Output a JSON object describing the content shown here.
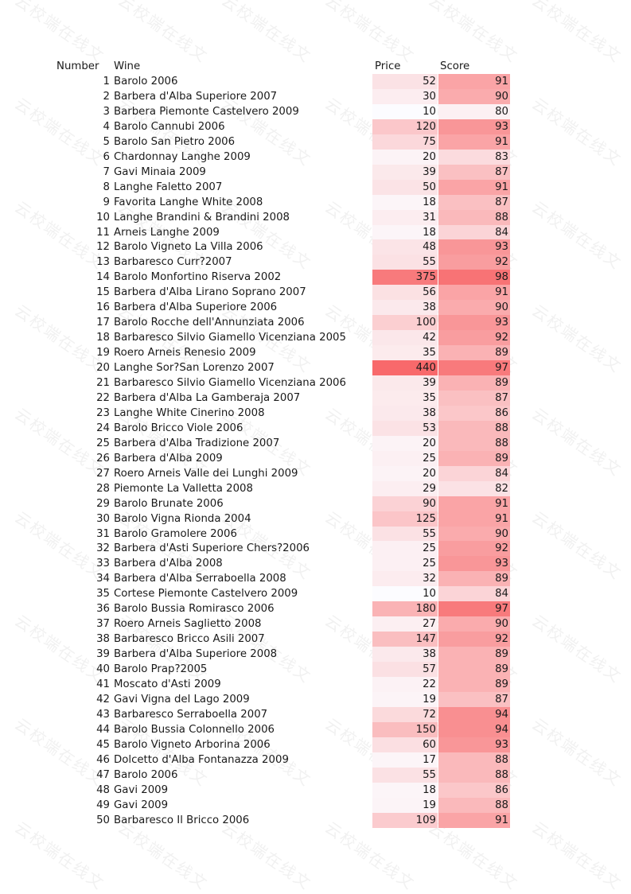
{
  "headers": {
    "number": "Number",
    "wine": "Wine",
    "price": "Price",
    "score": "Score"
  },
  "watermark_text": "云校端在线文",
  "rows": [
    {
      "number": "1",
      "wine": "Barolo 2006",
      "price": "52",
      "score": "91"
    },
    {
      "number": "2",
      "wine": "Barbera d'Alba Superiore 2007",
      "price": "30",
      "score": "90"
    },
    {
      "number": "3",
      "wine": "Barbera Piemonte Castelvero 2009",
      "price": "10",
      "score": "80"
    },
    {
      "number": "4",
      "wine": "Barolo Cannubi 2006",
      "price": "120",
      "score": "93"
    },
    {
      "number": "5",
      "wine": "Barolo San Pietro 2006",
      "price": "75",
      "score": "91"
    },
    {
      "number": "6",
      "wine": "Chardonnay Langhe 2009",
      "price": "20",
      "score": "83"
    },
    {
      "number": "7",
      "wine": "Gavi Minaia 2009",
      "price": "39",
      "score": "87"
    },
    {
      "number": "8",
      "wine": "Langhe Faletto 2007",
      "price": "50",
      "score": "91"
    },
    {
      "number": "9",
      "wine": "Favorita Langhe White 2008",
      "price": "18",
      "score": "87"
    },
    {
      "number": "10",
      "wine": "Langhe Brandini & Brandini 2008",
      "price": "31",
      "score": "88"
    },
    {
      "number": "11",
      "wine": "Arneis Langhe 2009",
      "price": "18",
      "score": "84"
    },
    {
      "number": "12",
      "wine": "Barolo Vigneto La Villa 2006",
      "price": "48",
      "score": "93"
    },
    {
      "number": "13",
      "wine": "Barbaresco Curr?2007",
      "price": "55",
      "score": "92"
    },
    {
      "number": "14",
      "wine": "Barolo Monfortino Riserva 2002",
      "price": "375",
      "score": "98"
    },
    {
      "number": "15",
      "wine": "Barbera d'Alba Lirano Soprano 2007",
      "price": "56",
      "score": "91"
    },
    {
      "number": "16",
      "wine": "Barbera d'Alba Superiore 2006",
      "price": "38",
      "score": "90"
    },
    {
      "number": "17",
      "wine": "Barolo Rocche dell'Annunziata 2006",
      "price": "100",
      "score": "93"
    },
    {
      "number": "18",
      "wine": "Barbaresco Silvio Giamello Vicenziana 2005",
      "price": "42",
      "score": "92"
    },
    {
      "number": "19",
      "wine": "Roero Arneis Renesio 2009",
      "price": "35",
      "score": "89"
    },
    {
      "number": "20",
      "wine": "Langhe Sor?San Lorenzo 2007",
      "price": "440",
      "score": "97"
    },
    {
      "number": "21",
      "wine": "Barbaresco Silvio Giamello Vicenziana 2006",
      "price": "39",
      "score": "89"
    },
    {
      "number": "22",
      "wine": "Barbera d'Alba La Gamberaja 2007",
      "price": "35",
      "score": "87"
    },
    {
      "number": "23",
      "wine": "Langhe White Cinerino 2008",
      "price": "38",
      "score": "86"
    },
    {
      "number": "24",
      "wine": "Barolo Bricco Viole 2006",
      "price": "53",
      "score": "88"
    },
    {
      "number": "25",
      "wine": "Barbera d'Alba Tradizione 2007",
      "price": "20",
      "score": "88"
    },
    {
      "number": "26",
      "wine": "Barbera d'Alba 2009",
      "price": "25",
      "score": "89"
    },
    {
      "number": "27",
      "wine": "Roero Arneis Valle dei Lunghi 2009",
      "price": "20",
      "score": "84"
    },
    {
      "number": "28",
      "wine": "Piemonte La Valletta 2008",
      "price": "29",
      "score": "82"
    },
    {
      "number": "29",
      "wine": "Barolo Brunate 2006",
      "price": "90",
      "score": "91"
    },
    {
      "number": "30",
      "wine": "Barolo Vigna Rionda 2004",
      "price": "125",
      "score": "91"
    },
    {
      "number": "31",
      "wine": "Barolo Gramolere 2006",
      "price": "55",
      "score": "90"
    },
    {
      "number": "32",
      "wine": "Barbera d'Asti Superiore Chers?2006",
      "price": "25",
      "score": "92"
    },
    {
      "number": "33",
      "wine": "Barbera d'Alba 2008",
      "price": "25",
      "score": "93"
    },
    {
      "number": "34",
      "wine": "Barbera d'Alba Serraboella 2008",
      "price": "32",
      "score": "89"
    },
    {
      "number": "35",
      "wine": "Cortese Piemonte Castelvero 2009",
      "price": "10",
      "score": "84"
    },
    {
      "number": "36",
      "wine": "Barolo Bussia Romirasco 2006",
      "price": "180",
      "score": "97"
    },
    {
      "number": "37",
      "wine": "Roero Arneis Saglietto 2008",
      "price": "27",
      "score": "90"
    },
    {
      "number": "38",
      "wine": "Barbaresco Bricco Asili 2007",
      "price": "147",
      "score": "92"
    },
    {
      "number": "39",
      "wine": "Barbera d'Alba Superiore 2008",
      "price": "38",
      "score": "89"
    },
    {
      "number": "40",
      "wine": "Barolo Prap?2005",
      "price": "57",
      "score": "89"
    },
    {
      "number": "41",
      "wine": "Moscato d'Asti 2009",
      "price": "22",
      "score": "89"
    },
    {
      "number": "42",
      "wine": "Gavi Vigna del Lago 2009",
      "price": "19",
      "score": "87"
    },
    {
      "number": "43",
      "wine": "Barbaresco Serraboella 2007",
      "price": "72",
      "score": "94"
    },
    {
      "number": "44",
      "wine": "Barolo Bussia Colonnello 2006",
      "price": "150",
      "score": "94"
    },
    {
      "number": "45",
      "wine": "Barolo Vigneto Arborina 2006",
      "price": "60",
      "score": "93"
    },
    {
      "number": "46",
      "wine": "Dolcetto d'Alba Fontanazza 2009",
      "price": "17",
      "score": "88"
    },
    {
      "number": "47",
      "wine": "Barolo 2006",
      "price": "55",
      "score": "88"
    },
    {
      "number": "48",
      "wine": "Gavi 2009",
      "price": "18",
      "score": "86"
    },
    {
      "number": "49",
      "wine": "Gavi 2009",
      "price": "19",
      "score": "88"
    },
    {
      "number": "50",
      "wine": "Barbaresco Il Bricco 2006",
      "price": "109",
      "score": "91"
    }
  ]
}
